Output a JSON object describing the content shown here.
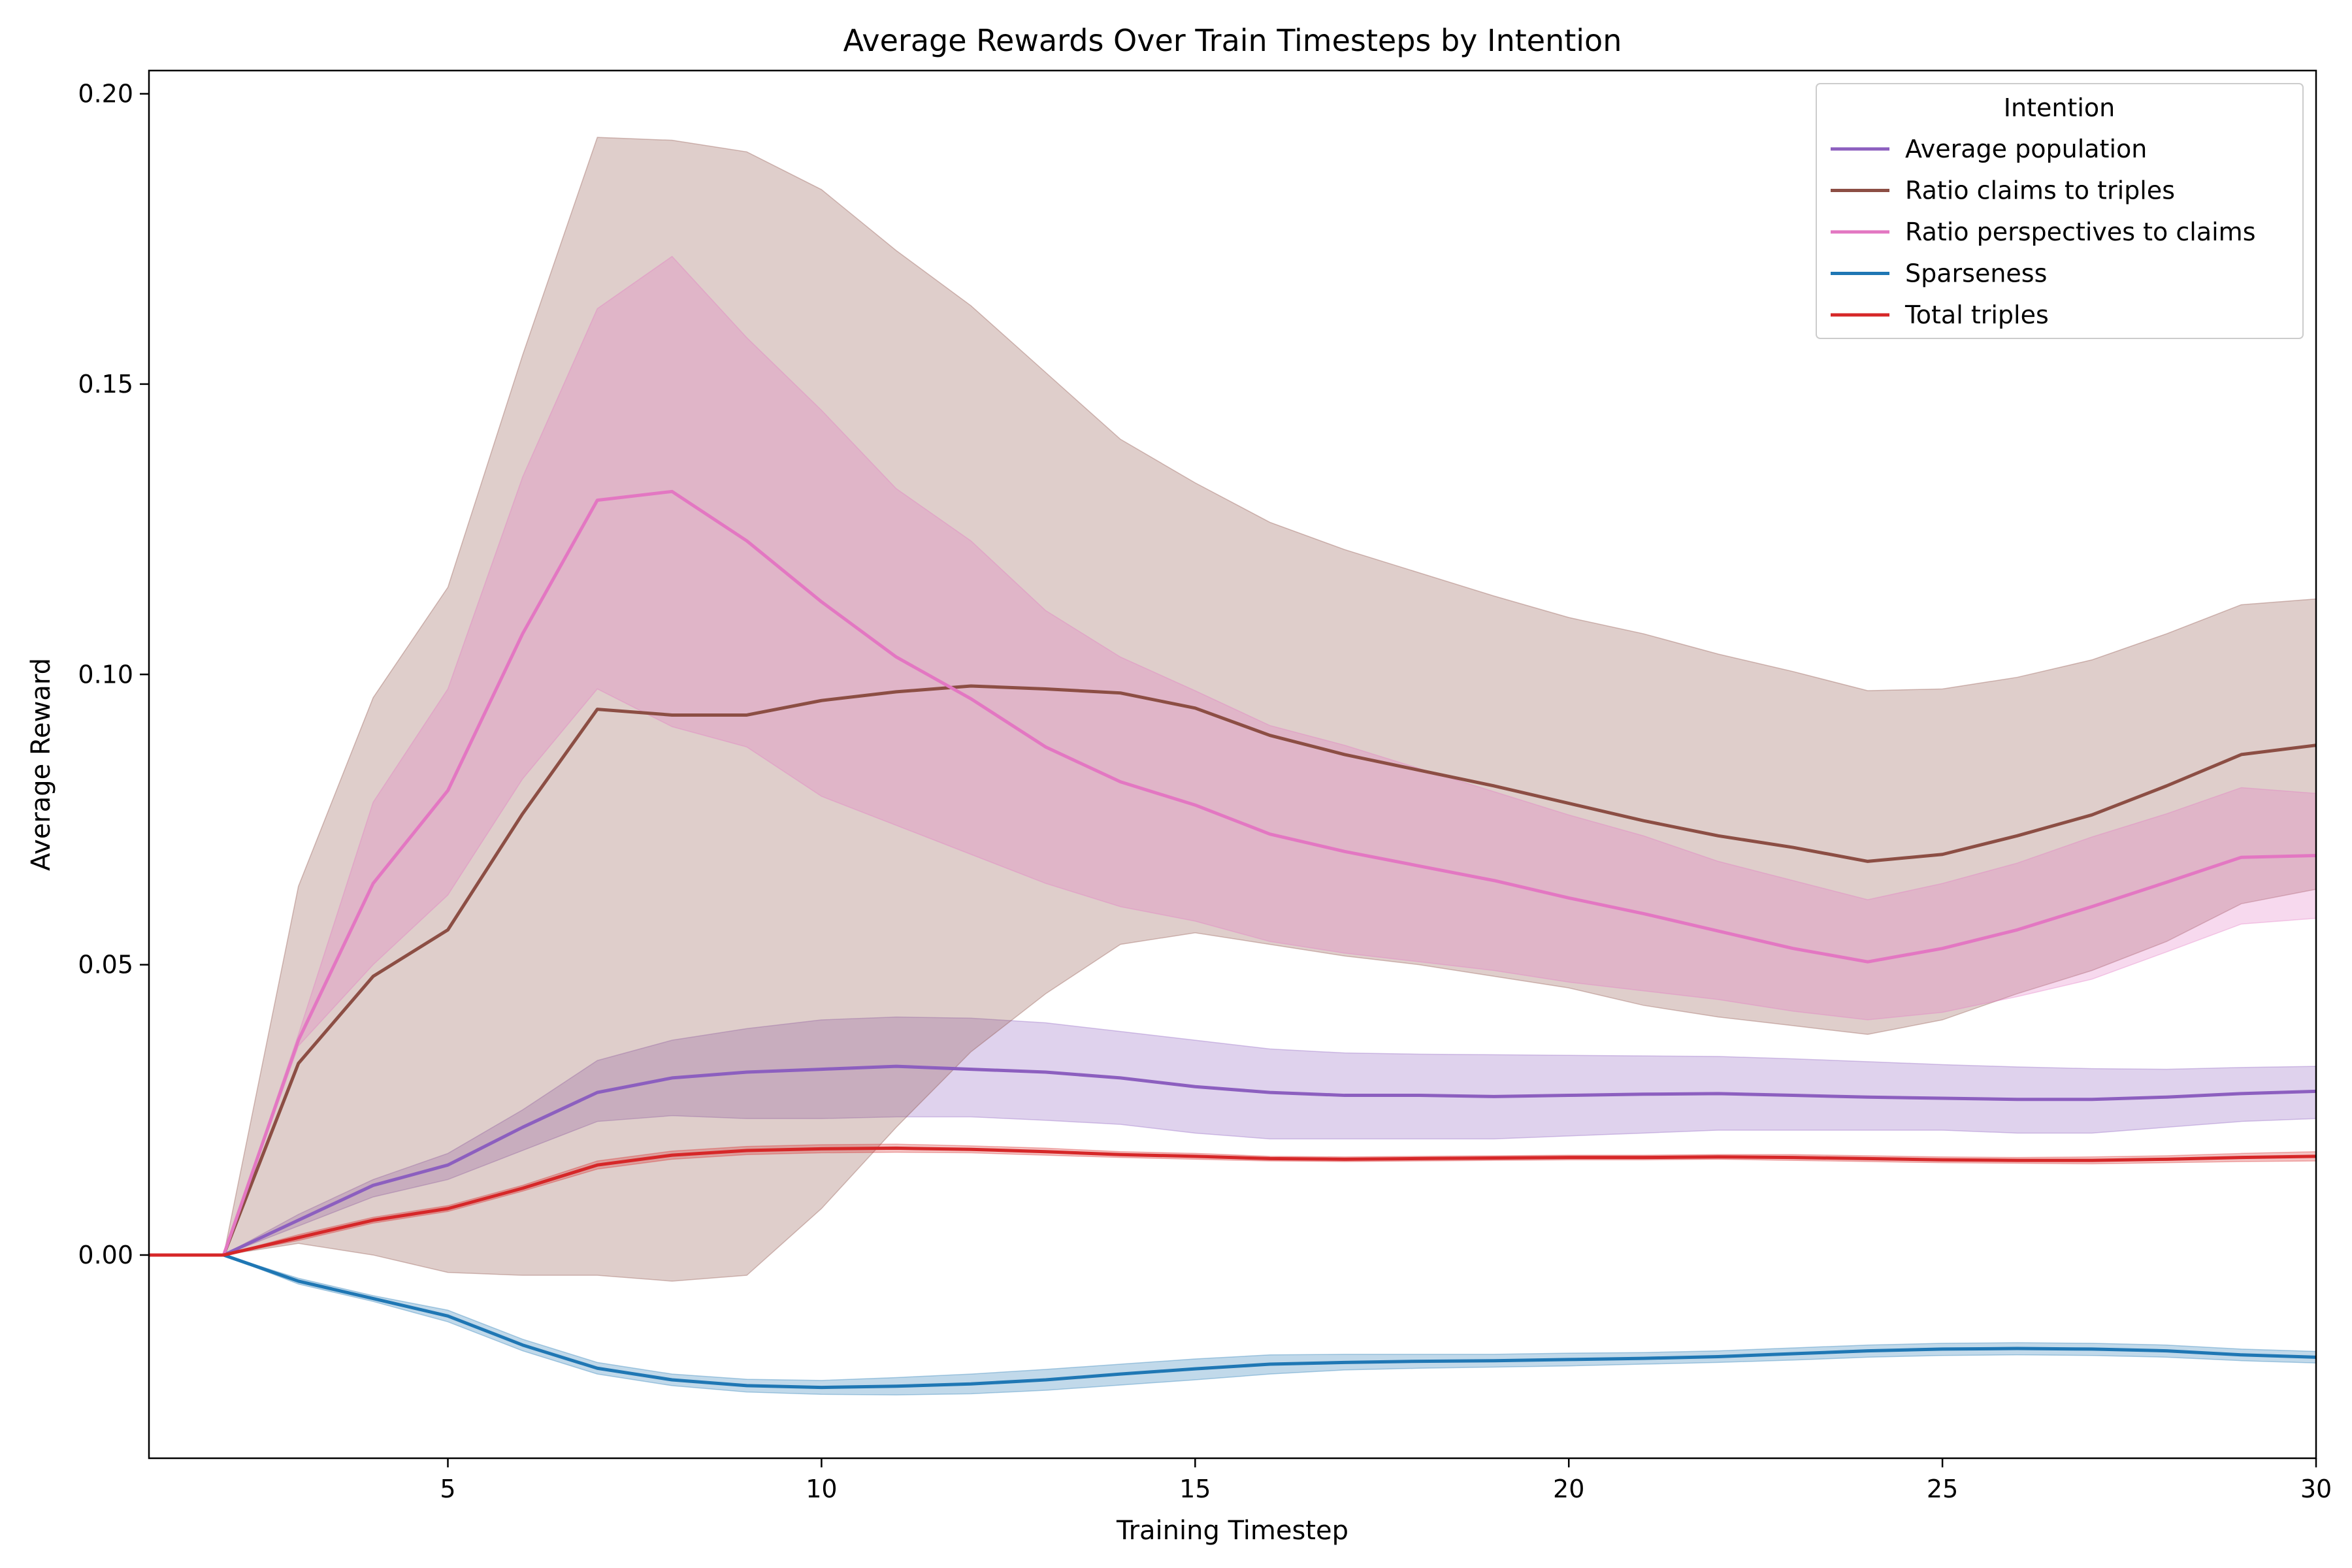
{
  "chart_data": {
    "type": "line",
    "title": "Average Rewards Over Train Timesteps by Intention",
    "xlabel": "Training Timestep",
    "ylabel": "Average Reward",
    "xlim": [
      1,
      30
    ],
    "ylim": [
      -0.035,
      0.204
    ],
    "xticks": [
      5,
      10,
      15,
      20,
      25,
      30
    ],
    "yticks": [
      0.0,
      0.05,
      0.1,
      0.15,
      0.2
    ],
    "ytick_labels": [
      "0.00",
      "0.05",
      "0.10",
      "0.15",
      "0.20"
    ],
    "legend": {
      "title": "Intention",
      "placement": "top-right"
    },
    "x": [
      1,
      2,
      3,
      4,
      5,
      6,
      7,
      8,
      9,
      10,
      11,
      12,
      13,
      14,
      15,
      16,
      17,
      18,
      19,
      20,
      21,
      22,
      23,
      24,
      25,
      26,
      27,
      28,
      29,
      30
    ],
    "series": [
      {
        "name": "Average population",
        "color": "#8c5fbf",
        "values": [
          0,
          0,
          0.006,
          0.012,
          0.0155,
          0.022,
          0.028,
          0.0305,
          0.0315,
          0.032,
          0.0325,
          0.032,
          0.0315,
          0.0305,
          0.029,
          0.028,
          0.0275,
          0.0275,
          0.0273,
          0.0275,
          0.0277,
          0.0278,
          0.0275,
          0.0272,
          0.027,
          0.0268,
          0.0268,
          0.0272,
          0.0278,
          0.0282
        ],
        "lower": [
          0,
          0,
          0.005,
          0.01,
          0.013,
          0.018,
          0.023,
          0.024,
          0.0235,
          0.0235,
          0.0238,
          0.0238,
          0.0232,
          0.0225,
          0.021,
          0.02,
          0.02,
          0.02,
          0.02,
          0.0205,
          0.021,
          0.0215,
          0.0215,
          0.0215,
          0.0215,
          0.021,
          0.021,
          0.022,
          0.023,
          0.0235
        ],
        "upper": [
          0,
          0,
          0.007,
          0.013,
          0.0175,
          0.025,
          0.0335,
          0.037,
          0.039,
          0.0405,
          0.041,
          0.0408,
          0.04,
          0.0385,
          0.037,
          0.0355,
          0.0348,
          0.0346,
          0.0345,
          0.0344,
          0.0343,
          0.0342,
          0.0338,
          0.0333,
          0.0328,
          0.0324,
          0.0321,
          0.032,
          0.0323,
          0.0325
        ]
      },
      {
        "name": "Ratio claims to triples",
        "color": "#8c4e44",
        "values": [
          0,
          0,
          0.033,
          0.048,
          0.056,
          0.076,
          0.094,
          0.093,
          0.093,
          0.0955,
          0.097,
          0.098,
          0.0975,
          0.0968,
          0.0942,
          0.0895,
          0.0862,
          0.0835,
          0.0808,
          0.0778,
          0.0748,
          0.0722,
          0.0702,
          0.0678,
          0.069,
          0.0722,
          0.0758,
          0.0808,
          0.0862,
          0.0878
        ],
        "lower": [
          0,
          0,
          0.002,
          0.0,
          -0.003,
          -0.0035,
          -0.0035,
          -0.0045,
          -0.0035,
          0.008,
          0.022,
          0.035,
          0.045,
          0.0535,
          0.0555,
          0.0535,
          0.0515,
          0.05,
          0.048,
          0.046,
          0.043,
          0.041,
          0.0395,
          0.038,
          0.0405,
          0.045,
          0.049,
          0.054,
          0.0605,
          0.063
        ],
        "upper": [
          0,
          0,
          0.0635,
          0.096,
          0.115,
          0.155,
          0.1925,
          0.192,
          0.19,
          0.1835,
          0.173,
          0.1635,
          0.152,
          0.1405,
          0.133,
          0.1262,
          0.1215,
          0.1175,
          0.1135,
          0.1098,
          0.107,
          0.1035,
          0.1005,
          0.0972,
          0.0975,
          0.0995,
          0.1025,
          0.107,
          0.112,
          0.113
        ]
      },
      {
        "name": "Ratio perspectives to claims",
        "color": "#e377c2",
        "values": [
          0,
          0,
          0.037,
          0.064,
          0.08,
          0.107,
          0.13,
          0.1315,
          0.123,
          0.1125,
          0.103,
          0.0958,
          0.0875,
          0.0815,
          0.0775,
          0.0725,
          0.0695,
          0.067,
          0.0645,
          0.0615,
          0.0588,
          0.0558,
          0.0528,
          0.0505,
          0.0528,
          0.056,
          0.06,
          0.0642,
          0.0685,
          0.0688
        ],
        "lower": [
          0,
          0,
          0.036,
          0.05,
          0.062,
          0.082,
          0.0975,
          0.091,
          0.0875,
          0.079,
          0.074,
          0.069,
          0.064,
          0.06,
          0.0575,
          0.054,
          0.052,
          0.0505,
          0.049,
          0.047,
          0.0455,
          0.044,
          0.042,
          0.0405,
          0.0418,
          0.0445,
          0.0475,
          0.0522,
          0.057,
          0.058
        ],
        "upper": [
          0,
          0,
          0.038,
          0.078,
          0.0975,
          0.134,
          0.163,
          0.172,
          0.158,
          0.1455,
          0.132,
          0.123,
          0.111,
          0.103,
          0.0972,
          0.0912,
          0.0878,
          0.0838,
          0.0798,
          0.0758,
          0.0722,
          0.0678,
          0.0645,
          0.0612,
          0.064,
          0.0675,
          0.072,
          0.076,
          0.0805,
          0.0795
        ]
      },
      {
        "name": "Sparseness",
        "color": "#1f77b4",
        "values": [
          0,
          0,
          -0.0045,
          -0.0075,
          -0.0105,
          -0.0155,
          -0.0195,
          -0.0215,
          -0.0225,
          -0.0228,
          -0.0226,
          -0.0222,
          -0.0215,
          -0.0205,
          -0.0196,
          -0.0188,
          -0.0185,
          -0.0183,
          -0.0182,
          -0.018,
          -0.0178,
          -0.0175,
          -0.017,
          -0.0165,
          -0.0162,
          -0.0161,
          -0.0162,
          -0.0165,
          -0.0172,
          -0.0176
        ],
        "lower": [
          0,
          0,
          -0.005,
          -0.008,
          -0.0115,
          -0.0165,
          -0.0205,
          -0.0225,
          -0.0236,
          -0.024,
          -0.0241,
          -0.0239,
          -0.0233,
          -0.0224,
          -0.0215,
          -0.0205,
          -0.0198,
          -0.0195,
          -0.0193,
          -0.0191,
          -0.0188,
          -0.0185,
          -0.0181,
          -0.0176,
          -0.0173,
          -0.0172,
          -0.0173,
          -0.0176,
          -0.0182,
          -0.0186
        ],
        "upper": [
          0,
          0,
          -0.004,
          -0.007,
          -0.0095,
          -0.0145,
          -0.0185,
          -0.0205,
          -0.0214,
          -0.0216,
          -0.0211,
          -0.0205,
          -0.0197,
          -0.0188,
          -0.0179,
          -0.0172,
          -0.0171,
          -0.0171,
          -0.0171,
          -0.0169,
          -0.0168,
          -0.0165,
          -0.016,
          -0.0155,
          -0.0152,
          -0.0151,
          -0.0152,
          -0.0155,
          -0.0162,
          -0.0166
        ]
      },
      {
        "name": "Total triples",
        "color": "#d62728",
        "values": [
          0,
          0,
          0.003,
          0.006,
          0.008,
          0.0115,
          0.0155,
          0.0172,
          0.018,
          0.0183,
          0.0184,
          0.0182,
          0.0178,
          0.0173,
          0.017,
          0.0166,
          0.0165,
          0.0166,
          0.0167,
          0.0168,
          0.0168,
          0.0169,
          0.0168,
          0.0166,
          0.0164,
          0.0163,
          0.0163,
          0.0165,
          0.0168,
          0.017
        ],
        "lower": [
          0,
          0,
          0.0025,
          0.0055,
          0.0075,
          0.011,
          0.0148,
          0.0165,
          0.0173,
          0.0176,
          0.0177,
          0.0176,
          0.0172,
          0.0168,
          0.0165,
          0.0162,
          0.0161,
          0.0162,
          0.0163,
          0.0164,
          0.0164,
          0.0165,
          0.0163,
          0.0161,
          0.0159,
          0.0158,
          0.0157,
          0.0159,
          0.0161,
          0.0162
        ],
        "upper": [
          0,
          0,
          0.0035,
          0.0065,
          0.0085,
          0.012,
          0.0162,
          0.0179,
          0.0187,
          0.019,
          0.0191,
          0.0188,
          0.0184,
          0.0178,
          0.0175,
          0.017,
          0.0169,
          0.017,
          0.0171,
          0.0172,
          0.0172,
          0.0173,
          0.0173,
          0.0171,
          0.0169,
          0.0168,
          0.0169,
          0.0171,
          0.0175,
          0.0178
        ]
      }
    ]
  }
}
